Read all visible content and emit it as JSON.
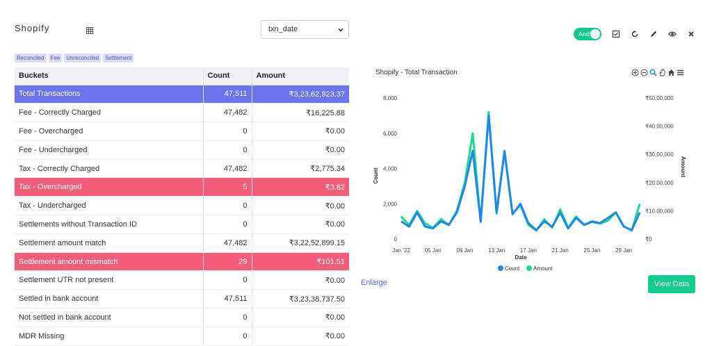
{
  "header": {
    "title": "Shopify",
    "date_field": "txn_date"
  },
  "tags": [
    "Reconciled",
    "Fee",
    "Unreconciled",
    "Settlement"
  ],
  "table": {
    "columns": [
      "Buckets",
      "Count",
      "Amount"
    ],
    "rows": [
      {
        "bucket": "Total Transactions",
        "count": "47,511",
        "amount": "₹3,23,62,923.37",
        "highlight": "blue"
      },
      {
        "bucket": "Fee - Correctly Charged",
        "count": "47,482",
        "amount": "₹16,225.88",
        "highlight": ""
      },
      {
        "bucket": "Fee - Overcharged",
        "count": "0",
        "amount": "₹0.00",
        "highlight": ""
      },
      {
        "bucket": "Fee - Undercharged",
        "count": "0",
        "amount": "₹0.00",
        "highlight": ""
      },
      {
        "bucket": "Tax - Correctly Charged",
        "count": "47,482",
        "amount": "₹2,775.34",
        "highlight": ""
      },
      {
        "bucket": "Tax - Overcharged",
        "count": "5",
        "amount": "₹3.82",
        "highlight": "red"
      },
      {
        "bucket": "Tax - Undercharged",
        "count": "0",
        "amount": "₹0.00",
        "highlight": ""
      },
      {
        "bucket": "Settlements without Transaction ID",
        "count": "0",
        "amount": "₹0.00",
        "highlight": ""
      },
      {
        "bucket": "Settlement amount match",
        "count": "47,482",
        "amount": "₹3,22,52,899.15",
        "highlight": ""
      },
      {
        "bucket": "Settlement amount mismatch",
        "count": "29",
        "amount": "₹101.51",
        "highlight": "red"
      },
      {
        "bucket": "Settlement UTR not present",
        "count": "0",
        "amount": "₹0.00",
        "highlight": ""
      },
      {
        "bucket": "Settled in bank account",
        "count": "47,511",
        "amount": "₹3,23,38,737.50",
        "highlight": ""
      },
      {
        "bucket": "Not settled in bank account",
        "count": "0",
        "amount": "₹0.00",
        "highlight": ""
      },
      {
        "bucket": "MDR Missing",
        "count": "0",
        "amount": "₹0.00",
        "highlight": ""
      }
    ]
  },
  "toolbar": {
    "toggle_label": "And",
    "icons": [
      "checkbox-icon",
      "refresh-icon",
      "edit-icon",
      "eye-icon",
      "close-icon"
    ]
  },
  "chart_tool_icons": [
    "zoom-in-icon",
    "zoom-out-icon",
    "magnify-icon",
    "pan-icon",
    "home-icon",
    "menu-icon"
  ],
  "actions": {
    "enlarge": "Enlarge",
    "view_data": "View Data"
  },
  "colors": {
    "count": "#1f87e6",
    "amount": "#1fd896",
    "accent_blue": "#6c73ec",
    "accent_red": "#f45d7a"
  },
  "chart_data": {
    "type": "line",
    "title": "Shopify - Total Transaction",
    "xlabel": "Date",
    "ylabel": "Count",
    "y2label": "Amount",
    "x_ticks": [
      "Jan '22",
      "05 Jan",
      "09 Jan",
      "13 Jan",
      "17 Jan",
      "21 Jan",
      "25 Jan",
      "29 Jan"
    ],
    "y_ticks": [
      "0",
      "2,000",
      "4,000",
      "6,000",
      "8,000"
    ],
    "y2_ticks": [
      "₹0",
      "₹10,00,000",
      "₹20,00,000",
      "₹30,00,000",
      "₹40,00,000",
      "₹50,00,000"
    ],
    "ylim": [
      0,
      8000
    ],
    "y2lim": [
      0,
      5000000
    ],
    "x": [
      "2022-01-01",
      "2022-01-02",
      "2022-01-03",
      "2022-01-04",
      "2022-01-05",
      "2022-01-06",
      "2022-01-07",
      "2022-01-08",
      "2022-01-09",
      "2022-01-10",
      "2022-01-11",
      "2022-01-12",
      "2022-01-13",
      "2022-01-14",
      "2022-01-15",
      "2022-01-16",
      "2022-01-17",
      "2022-01-18",
      "2022-01-19",
      "2022-01-20",
      "2022-01-21",
      "2022-01-22",
      "2022-01-23",
      "2022-01-24",
      "2022-01-25",
      "2022-01-26",
      "2022-01-27",
      "2022-01-28",
      "2022-01-29",
      "2022-01-30",
      "2022-01-31"
    ],
    "series": [
      {
        "name": "Count",
        "axis": "left",
        "values": [
          1000,
          700,
          1500,
          700,
          600,
          1000,
          800,
          1500,
          3000,
          5000,
          1000,
          7000,
          1500,
          5000,
          1400,
          2000,
          900,
          500,
          1000,
          700,
          1500,
          600,
          1200,
          800,
          1000,
          900,
          1200,
          1500,
          700,
          500,
          1500
        ]
      },
      {
        "name": "Amount",
        "axis": "right",
        "values": [
          800000,
          500000,
          1000000,
          550000,
          400000,
          700000,
          500000,
          1000000,
          2000000,
          3750000,
          600000,
          4500000,
          900000,
          3100000,
          900000,
          1200000,
          500000,
          300000,
          700000,
          400000,
          1050000,
          400000,
          800000,
          500000,
          600000,
          550000,
          650000,
          950000,
          450000,
          300000,
          1250000
        ]
      }
    ],
    "legend": "bottom",
    "grid": false
  }
}
